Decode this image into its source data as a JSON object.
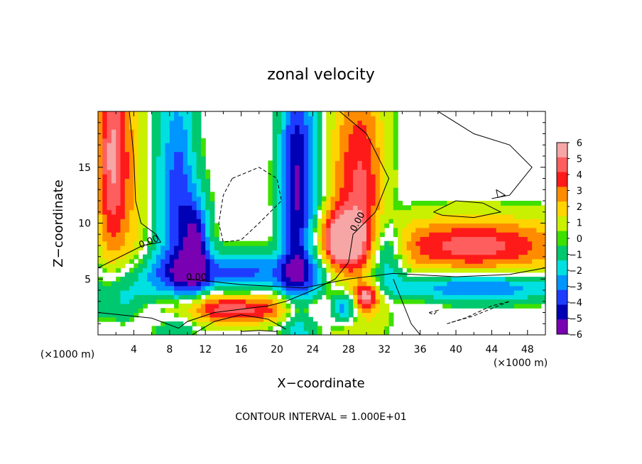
{
  "chart_data": {
    "type": "heatmap",
    "title": "zonal velocity",
    "xlabel": "X−coordinate",
    "ylabel": "Z−coordinate",
    "x_unit_left": "(×1000 m)",
    "x_unit_right": "(×1000 m)",
    "footer": "CONTOUR INTERVAL = 1.000E+01",
    "xlim": [
      0,
      50
    ],
    "ylim": [
      0,
      20
    ],
    "x_ticks": [
      4,
      8,
      12,
      16,
      20,
      24,
      28,
      32,
      36,
      40,
      44,
      48
    ],
    "y_ticks": [
      5,
      10,
      15
    ],
    "contour_labels": [
      "0.00",
      "0.00",
      "0.00"
    ],
    "colorbar": {
      "levels": [
        6,
        5,
        4,
        3,
        2,
        1,
        0,
        -1,
        -2,
        -3,
        -4,
        -5,
        -6
      ],
      "labels": [
        "6",
        "5",
        "4",
        "3",
        "2",
        "1",
        "0",
        "−1",
        "−2",
        "−3",
        "−4",
        "−5",
        "−6"
      ],
      "colors": [
        "#f7a6a6",
        "#ff5e5e",
        "#ff1a1a",
        "#ff8c00",
        "#ffd400",
        "#c8f000",
        "#3ee000",
        "#00c86e",
        "#00e0e0",
        "#0096ff",
        "#1e3cff",
        "#0000b4",
        "#7a00b4"
      ]
    },
    "fields": [
      {
        "x": 1.5,
        "z": 16,
        "sx": 1.2,
        "sz": 7,
        "v": 5.5
      },
      {
        "x": 4,
        "z": 14,
        "sx": 1.3,
        "sz": 8,
        "v": 2
      },
      {
        "x": 6.5,
        "z": 13,
        "sx": 1.2,
        "sz": 8,
        "v": -1
      },
      {
        "x": 9,
        "z": 12,
        "sx": 1.3,
        "sz": 8,
        "v": -4
      },
      {
        "x": 11,
        "z": 8,
        "sx": 1,
        "sz": 3,
        "v": -5
      },
      {
        "x": 22,
        "z": 13,
        "sx": 1.2,
        "sz": 9,
        "v": -5
      },
      {
        "x": 24,
        "z": 12,
        "sx": 1.3,
        "sz": 9,
        "v": -2
      },
      {
        "x": 26.5,
        "z": 12,
        "sx": 1.5,
        "sz": 9,
        "v": 1.5
      },
      {
        "x": 29.5,
        "z": 13,
        "sx": 1.8,
        "sz": 8,
        "v": 4.5
      },
      {
        "x": 27,
        "z": 8.5,
        "sx": 1.8,
        "sz": 1.8,
        "v": 5
      },
      {
        "x": 32,
        "z": 7.5,
        "sx": 1.5,
        "sz": 2,
        "v": -4.5
      },
      {
        "x": 30,
        "z": 3.5,
        "sx": 1,
        "sz": 0.8,
        "v": 5
      },
      {
        "x": 27.5,
        "z": 2.5,
        "sx": 1.2,
        "sz": 1,
        "v": -5
      },
      {
        "x": 15,
        "z": 5.5,
        "sx": 8,
        "sz": 1.3,
        "v": -4
      },
      {
        "x": 15,
        "z": 3.5,
        "sx": 7,
        "sz": 1.2,
        "v": 1
      },
      {
        "x": 15,
        "z": 2.3,
        "sx": 6,
        "sz": 0.9,
        "v": 4.5
      },
      {
        "x": 3,
        "z": 3,
        "sx": 2.5,
        "sz": 1.5,
        "v": -3
      },
      {
        "x": 42,
        "z": 8,
        "sx": 8,
        "sz": 1.8,
        "v": 5
      },
      {
        "x": 42,
        "z": 5.8,
        "sx": 8,
        "sz": 1,
        "v": 0
      },
      {
        "x": 42,
        "z": 4.3,
        "sx": 7,
        "sz": 0.9,
        "v": -4
      },
      {
        "x": 36,
        "z": 3.5,
        "sx": 2,
        "sz": 2,
        "v": 0.5
      }
    ]
  }
}
